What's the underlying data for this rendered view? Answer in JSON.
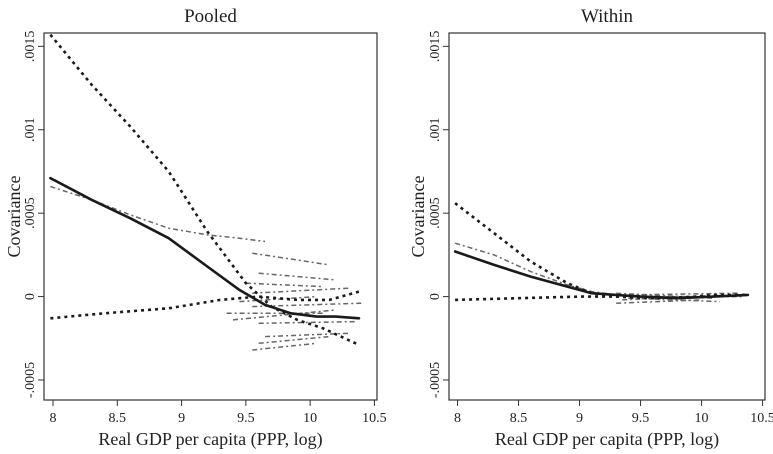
{
  "chart_data": [
    {
      "type": "line",
      "title": "Pooled",
      "xlabel": "Real GDP per capita (PPP, log)",
      "ylabel": "Covariance",
      "xlim": [
        7.93,
        10.52
      ],
      "ylim": [
        -0.00062,
        0.00158
      ],
      "xticks": [
        "8",
        "8.5",
        "9",
        "9.5",
        "10",
        "10.5"
      ],
      "xtick_values": [
        8,
        8.5,
        9,
        9.5,
        10,
        10.5
      ],
      "yticks": [
        "-.0005",
        "0",
        ".0005",
        ".001",
        ".0015"
      ],
      "ytick_values": [
        -0.0005,
        0,
        0.0005,
        0.001,
        0.0015
      ],
      "grid": false,
      "series": [
        {
          "style": "solid",
          "color": "#1a1a1a",
          "x": [
            7.98,
            8.3,
            8.6,
            8.9,
            9.2,
            9.45,
            9.65,
            9.85,
            10.05,
            10.2,
            10.38
          ],
          "y": [
            0.00071,
            0.00058,
            0.00047,
            0.00035,
            0.00018,
            4e-05,
            -5e-05,
            -0.0001,
            -0.00012,
            -0.00012,
            -0.00013
          ]
        },
        {
          "style": "dotted-upper",
          "color": "#1a1a1a",
          "x": [
            7.98,
            8.3,
            8.6,
            8.9,
            9.2,
            9.5,
            9.7,
            9.9,
            10.1,
            10.38
          ],
          "y": [
            0.00157,
            0.00127,
            0.00102,
            0.00075,
            0.00039,
            8e-05,
            -6e-05,
            -0.00014,
            -0.00019,
            -0.00029
          ]
        },
        {
          "style": "dotted-lower",
          "color": "#1a1a1a",
          "x": [
            7.98,
            8.4,
            8.9,
            9.3,
            9.6,
            9.9,
            10.15,
            10.38
          ],
          "y": [
            -0.00013,
            -0.0001,
            -7e-05,
            -2e-05,
            0.0,
            -2e-05,
            -2e-05,
            3e-05
          ]
        },
        {
          "style": "dash-gray",
          "color": "#666666",
          "x": [
            7.98,
            8.3,
            8.6,
            8.9,
            9.2,
            9.45,
            9.65
          ],
          "y": [
            0.00066,
            0.00058,
            0.00049,
            0.00041,
            0.00037,
            0.00035,
            0.00033
          ]
        },
        {
          "style": "dash-gray",
          "color": "#666666",
          "x": [
            9.55,
            10.15
          ],
          "y": [
            0.00026,
            0.00019
          ]
        },
        {
          "style": "dash-gray",
          "color": "#666666",
          "x": [
            9.6,
            10.2
          ],
          "y": [
            0.00014,
            0.0001
          ]
        },
        {
          "style": "dash-gray",
          "color": "#666666",
          "x": [
            9.5,
            10.1
          ],
          "y": [
            8e-05,
            6e-05
          ]
        },
        {
          "style": "dash-gray",
          "color": "#666666",
          "x": [
            9.55,
            10.3
          ],
          "y": [
            2e-05,
            5e-05
          ]
        },
        {
          "style": "dash-gray",
          "color": "#666666",
          "x": [
            9.45,
            10.05
          ],
          "y": [
            -3e-05,
            0.0
          ]
        },
        {
          "style": "dash-gray",
          "color": "#666666",
          "x": [
            9.55,
            10.4
          ],
          "y": [
            -6e-05,
            -4e-05
          ]
        },
        {
          "style": "dash-gray",
          "color": "#666666",
          "x": [
            9.35,
            10.1
          ],
          "y": [
            -0.0001,
            -0.0001
          ]
        },
        {
          "style": "dash-gray",
          "color": "#666666",
          "x": [
            9.4,
            10.2
          ],
          "y": [
            -0.00014,
            -8e-05
          ]
        },
        {
          "style": "dash-gray",
          "color": "#666666",
          "x": [
            9.6,
            10.35
          ],
          "y": [
            -0.00016,
            -0.00015
          ]
        },
        {
          "style": "dash-gray",
          "color": "#666666",
          "x": [
            9.65,
            10.3
          ],
          "y": [
            -0.00024,
            -0.00022
          ]
        },
        {
          "style": "dash-gray",
          "color": "#666666",
          "x": [
            9.6,
            10.15
          ],
          "y": [
            -0.00028,
            -0.00024
          ]
        },
        {
          "style": "dash-gray",
          "color": "#666666",
          "x": [
            9.55,
            10.05
          ],
          "y": [
            -0.00032,
            -0.00028
          ]
        }
      ]
    },
    {
      "type": "line",
      "title": "Within",
      "xlabel": "Real GDP per capita (PPP, log)",
      "ylabel": "Covariance",
      "xlim": [
        7.93,
        10.52
      ],
      "ylim": [
        -0.00062,
        0.00158
      ],
      "xticks": [
        "8",
        "8.5",
        "9",
        "9.5",
        "10",
        "10.5"
      ],
      "xtick_values": [
        8,
        8.5,
        9,
        9.5,
        10,
        10.5
      ],
      "yticks": [
        "-.0005",
        "0",
        ".0005",
        ".001",
        ".0015"
      ],
      "ytick_values": [
        -0.0005,
        0,
        0.0005,
        0.001,
        0.0015
      ],
      "grid": false,
      "series": [
        {
          "style": "solid",
          "color": "#1a1a1a",
          "x": [
            7.98,
            8.3,
            8.6,
            8.9,
            9.1,
            9.3,
            9.5,
            9.8,
            10.1,
            10.38
          ],
          "y": [
            0.00027,
            0.00019,
            0.00012,
            6e-05,
            2e-05,
            1e-05,
            0.0,
            -1e-05,
            0.0,
            1e-05
          ]
        },
        {
          "style": "dotted-upper",
          "color": "#1a1a1a",
          "x": [
            7.98,
            8.3,
            8.6,
            8.9,
            9.1,
            9.3,
            9.5,
            9.8,
            10.1,
            10.38
          ],
          "y": [
            0.00056,
            0.00038,
            0.00021,
            8e-05,
            2e-05,
            0.0,
            0.0,
            -1e-05,
            1e-05,
            1e-05
          ]
        },
        {
          "style": "dotted-lower",
          "color": "#1a1a1a",
          "x": [
            7.98,
            8.5,
            9.0,
            9.3,
            9.6,
            10.0,
            10.38
          ],
          "y": [
            -2e-05,
            -1e-05,
            0.0,
            0.0,
            -1e-05,
            0.0,
            1e-05
          ]
        },
        {
          "style": "dash-gray",
          "color": "#666666",
          "x": [
            7.98,
            8.3,
            8.6,
            8.9,
            9.1,
            9.3
          ],
          "y": [
            0.00032,
            0.00025,
            0.00015,
            7e-05,
            3e-05,
            1e-05
          ]
        },
        {
          "style": "dash-gray",
          "color": "#666666",
          "x": [
            9.3,
            10.1
          ],
          "y": [
            2e-05,
            -1e-05
          ]
        },
        {
          "style": "dash-gray",
          "color": "#666666",
          "x": [
            9.35,
            10.2
          ],
          "y": [
            -2e-05,
            1e-05
          ]
        },
        {
          "style": "dash-gray",
          "color": "#666666",
          "x": [
            9.4,
            10.3
          ],
          "y": [
            1e-05,
            2e-05
          ]
        },
        {
          "style": "dash-gray",
          "color": "#666666",
          "x": [
            9.3,
            10.0
          ],
          "y": [
            -4e-05,
            -2e-05
          ]
        },
        {
          "style": "dash-gray",
          "color": "#666666",
          "x": [
            9.5,
            10.35
          ],
          "y": [
            0.0,
            0.0
          ]
        },
        {
          "style": "dash-gray",
          "color": "#666666",
          "x": [
            9.4,
            10.15
          ],
          "y": [
            -1e-05,
            -3e-05
          ]
        }
      ]
    }
  ]
}
